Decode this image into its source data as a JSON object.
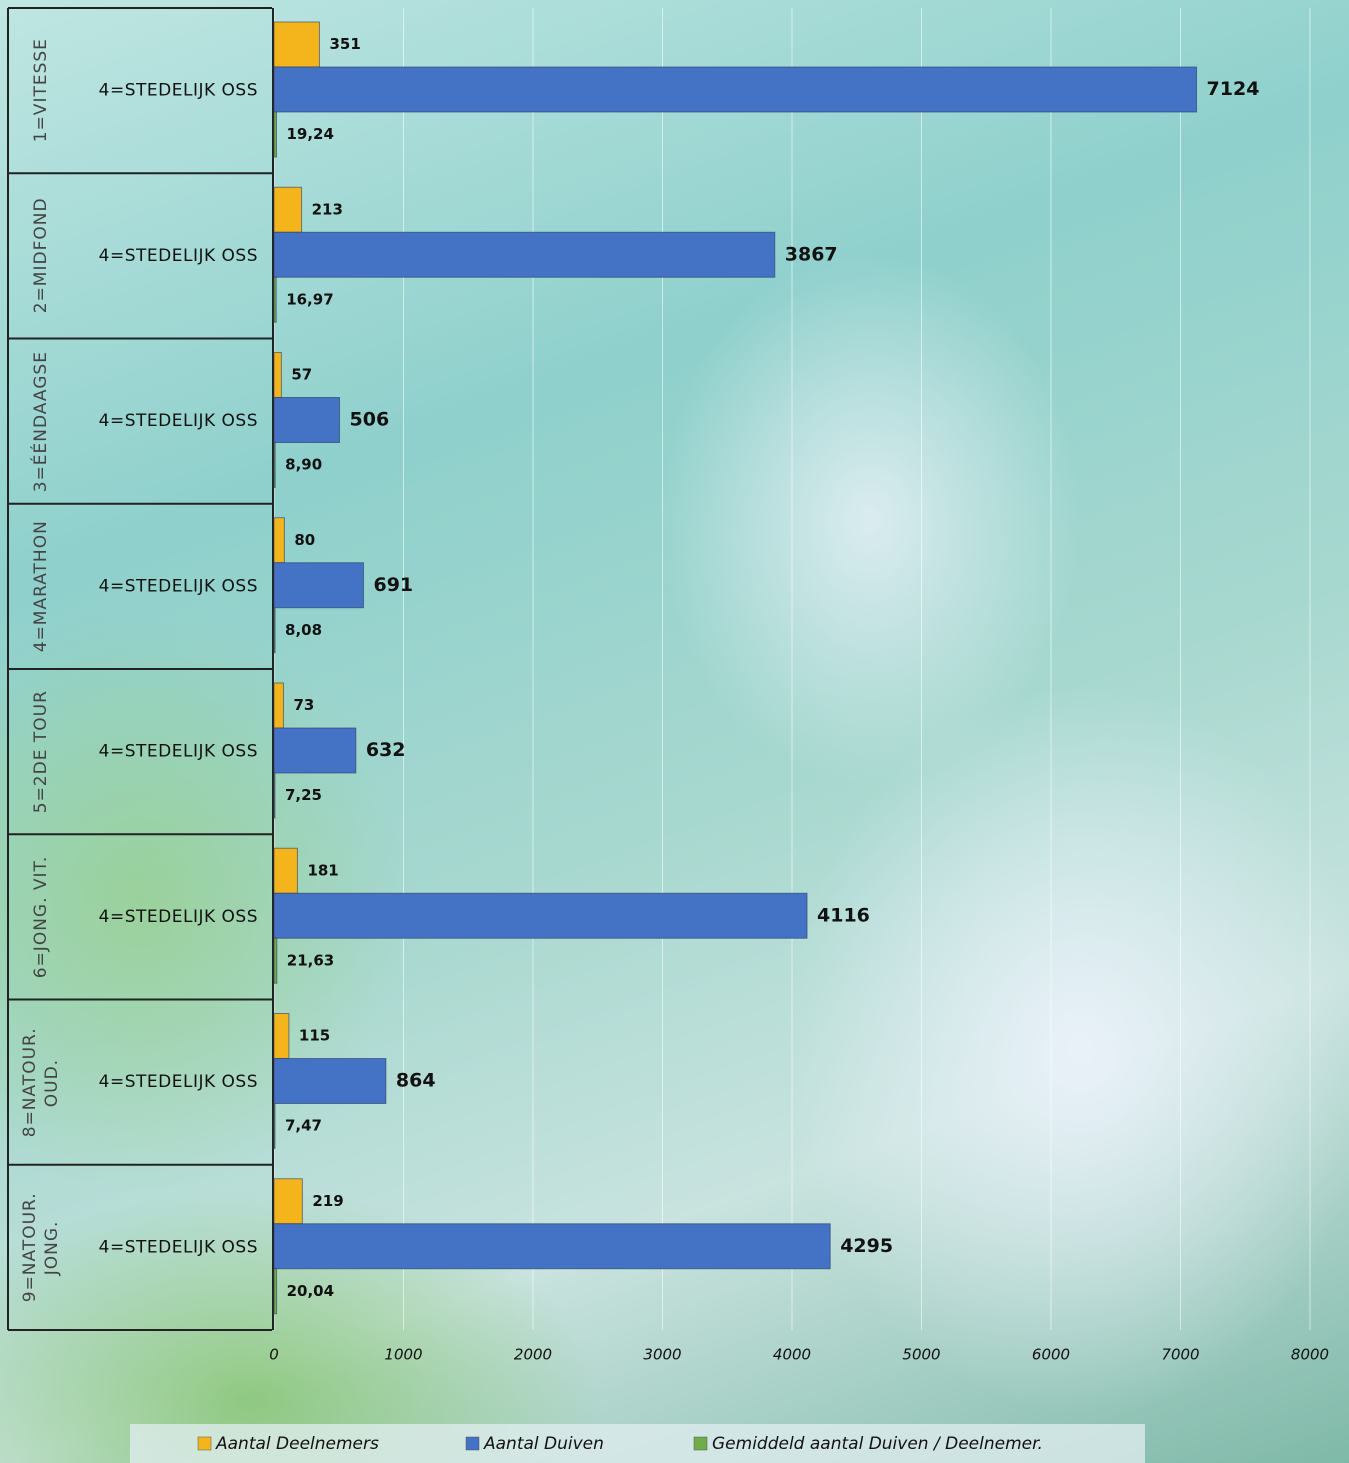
{
  "chart_data": {
    "type": "hbar",
    "groups": [
      "1=VITESSE",
      "2=MIDFOND",
      "3=ÉÉNDAAGSE",
      "4=MARATHON",
      "5=2DE TOUR",
      "6=JONG. VIT.",
      "8=NATOUR. OUD.",
      "9=NATOUR. JONG."
    ],
    "categories": [
      "4=STEDELIJK OSS",
      "4=STEDELIJK OSS",
      "4=STEDELIJK OSS",
      "4=STEDELIJK OSS",
      "4=STEDELIJK OSS",
      "4=STEDELIJK OSS",
      "4=STEDELIJK OSS",
      "4=STEDELIJK OSS"
    ],
    "series": [
      {
        "name": "Aantal Deelnemers",
        "color": "#f4b51c",
        "values": [
          351,
          213,
          57,
          80,
          73,
          181,
          115,
          219
        ]
      },
      {
        "name": "Aantal Duiven",
        "color": "#4472c4",
        "values": [
          7124,
          3867,
          506,
          691,
          632,
          4116,
          864,
          4295
        ]
      },
      {
        "name": "Gemiddeld aantal Duiven / Deelnemer.",
        "color": "#70ad47",
        "values": [
          19.24,
          16.97,
          8.9,
          8.08,
          7.25,
          21.63,
          7.47,
          20.04
        ],
        "value_labels": [
          "19,24",
          "16,97",
          "8,90",
          "8,08",
          "7,25",
          "21,63",
          "7,47",
          "20,04"
        ]
      }
    ],
    "xlim": [
      0,
      8000
    ],
    "xticks": [
      0,
      1000,
      2000,
      3000,
      4000,
      5000,
      6000,
      7000,
      8000
    ],
    "grid": true,
    "legend": "bottom"
  }
}
